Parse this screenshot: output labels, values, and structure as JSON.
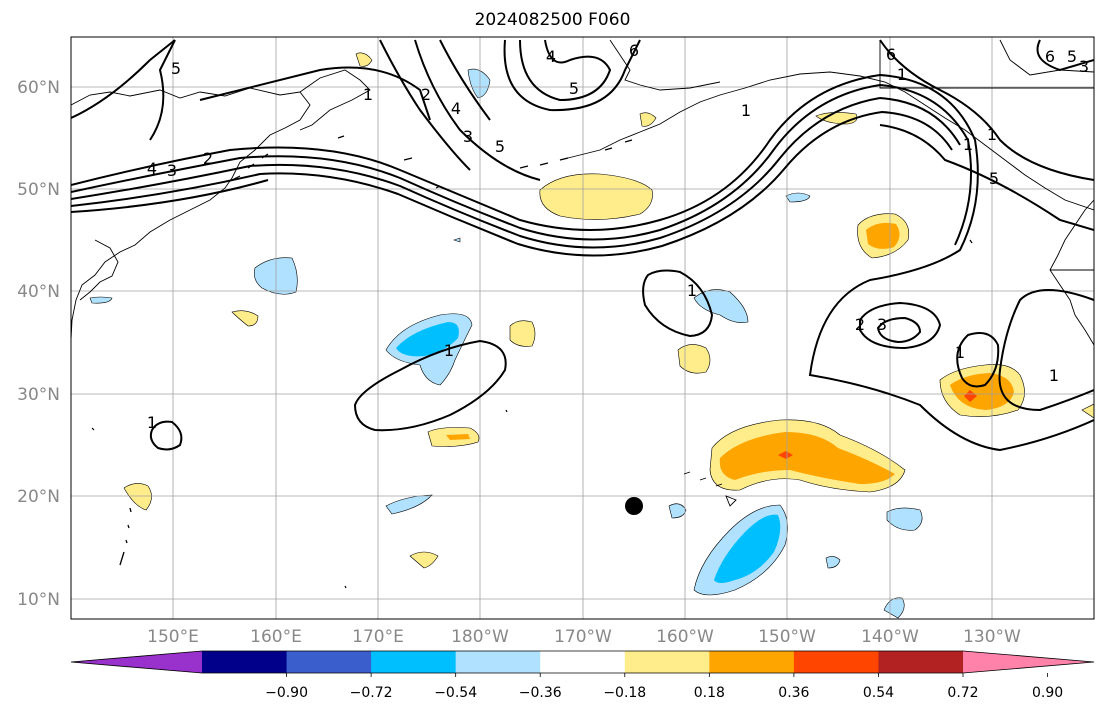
{
  "title": "2024082500 F060",
  "lat_labels": [
    "10°N",
    "20°N",
    "30°N",
    "40°N",
    "50°N",
    "60°N"
  ],
  "lon_labels": [
    "150°E",
    "160°E",
    "170°E",
    "180°W",
    "170°W",
    "160°W",
    "150°W",
    "140°W",
    "130°W"
  ],
  "contour_labels": [
    "5",
    "1",
    "2",
    "4",
    "3",
    "5",
    "4",
    "6",
    "5",
    "6",
    "4",
    "3",
    "2",
    "1",
    "1",
    "2",
    "3",
    "1",
    "1",
    "1",
    "1",
    "1",
    "1",
    "6",
    "5",
    "3",
    "1",
    "5"
  ],
  "colorbar": {
    "colors": [
      "#9932cc",
      "#00008b",
      "#3a5fcd",
      "#00bfff",
      "#b0e2ff",
      "#ffffff",
      "#ffec8b",
      "#ffa500",
      "#ff4500",
      "#b22222",
      "#ff82ab"
    ],
    "tick_labels": [
      "−0.90",
      "−0.72",
      "−0.54",
      "−0.36",
      "−0.18",
      "0.18",
      "0.36",
      "0.54",
      "0.72",
      "0.90"
    ]
  },
  "colors": {
    "pos_light": "#ffec8b",
    "pos_mid": "#ffa500",
    "pos_high": "#ff4500",
    "neg_light": "#b0e2ff",
    "neg_mid": "#00bfff",
    "grid": "#a0a0a0",
    "coast": "#000000"
  }
}
